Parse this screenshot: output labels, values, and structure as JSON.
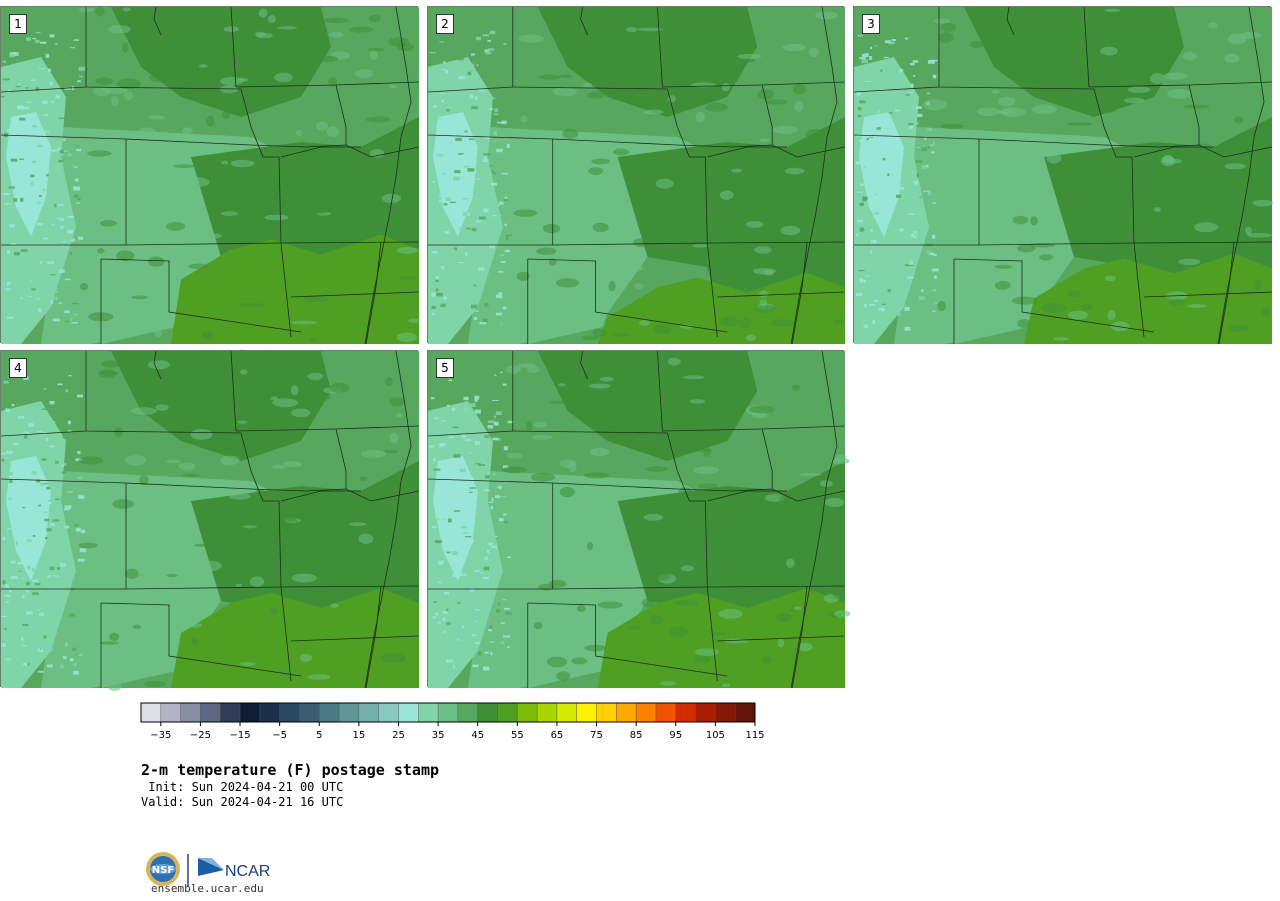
{
  "panels": [
    {
      "label": "1",
      "warm_level": 0.55
    },
    {
      "label": "2",
      "warm_level": 0.35
    },
    {
      "label": "3",
      "warm_level": 0.45
    },
    {
      "label": "4",
      "warm_level": 0.5
    },
    {
      "label": "5",
      "warm_level": 0.5
    }
  ],
  "colorbar": {
    "colors": [
      "#dcdde6",
      "#b2b4c6",
      "#888ea6",
      "#5e6884",
      "#2f3d5a",
      "#0d1d36",
      "#1b2f4b",
      "#2b4862",
      "#3a5d73",
      "#4c7b86",
      "#5f9597",
      "#74b1ae",
      "#86cbc2",
      "#98e6d8",
      "#7fd4a8",
      "#6cbf83",
      "#57a85e",
      "#3f8f39",
      "#4f9f22",
      "#7cbb08",
      "#a9d400",
      "#d6e900",
      "#fff200",
      "#ffcf00",
      "#ffa800",
      "#ff7f00",
      "#f25100",
      "#d32b00",
      "#aa1d04",
      "#851705",
      "#621406"
    ],
    "tick_labels": [
      "−35",
      "−25",
      "−15",
      "−5",
      "5",
      "15",
      "25",
      "35",
      "45",
      "55",
      "65",
      "75",
      "85",
      "95",
      "105",
      "115"
    ],
    "tick_values": [
      -35,
      -25,
      -15,
      -5,
      5,
      15,
      25,
      35,
      45,
      55,
      65,
      75,
      85,
      95,
      105,
      115
    ],
    "min": -40,
    "max": 115
  },
  "title": "2-m temperature (F) postage stamp",
  "init": " Init: Sun 2024-04-21 00 UTC",
  "valid": "Valid: Sun 2024-04-21 16 UTC",
  "logos": {
    "nsf": "NSF",
    "ncar": "NCAR"
  },
  "site": "ensemble.ucar.edu",
  "map_colors": {
    "cold": "#98e6d8",
    "c1": "#7fd4a8",
    "c2": "#6cbf83",
    "c3": "#57a85e",
    "c4": "#3f8f39",
    "warm": "#4f9f22"
  }
}
